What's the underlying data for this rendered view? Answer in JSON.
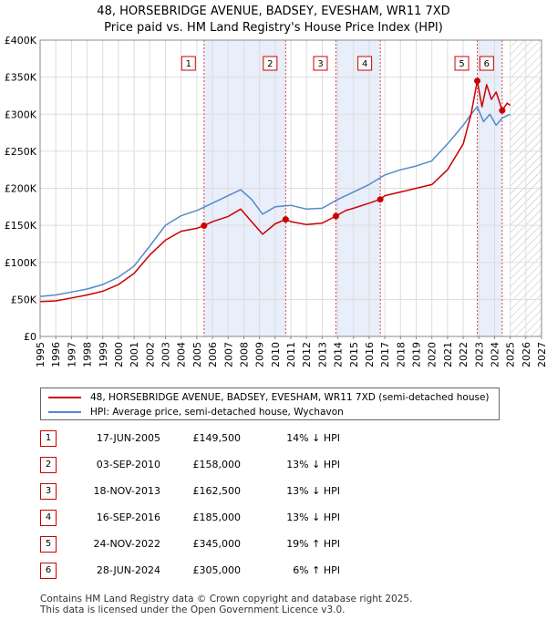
{
  "title_line1": "48, HORSEBRIDGE AVENUE, BADSEY, EVESHAM, WR11 7XD",
  "title_line2": "Price paid vs. HM Land Registry's House Price Index (HPI)",
  "colors": {
    "property": "#cc0000",
    "hpi": "#5588cc",
    "shade": "#e8eefa",
    "marker_border": "#cc0000",
    "hatch": "#bbbbbb"
  },
  "chart_data": {
    "type": "line",
    "title": "Price paid vs. HM Land Registry's House Price Index (HPI)",
    "xlabel": "",
    "ylabel": "",
    "xlim": [
      1995,
      2027
    ],
    "ylim": [
      0,
      400000
    ],
    "y_ticks": [
      0,
      50000,
      100000,
      150000,
      200000,
      250000,
      300000,
      350000,
      400000
    ],
    "y_tick_labels": [
      "£0",
      "£50K",
      "£100K",
      "£150K",
      "£200K",
      "£250K",
      "£300K",
      "£350K",
      "£400K"
    ],
    "x_ticks": [
      1995,
      1996,
      1997,
      1998,
      1999,
      2000,
      2001,
      2002,
      2003,
      2004,
      2005,
      2006,
      2007,
      2008,
      2009,
      2010,
      2011,
      2012,
      2013,
      2014,
      2015,
      2016,
      2017,
      2018,
      2019,
      2020,
      2021,
      2022,
      2023,
      2024,
      2025,
      2026,
      2027
    ],
    "x_tick_labels": [
      "1995",
      "1996",
      "1997",
      "1998",
      "1999",
      "2000",
      "2001",
      "2002",
      "2003",
      "2004",
      "2005",
      "2006",
      "2007",
      "2008",
      "2009",
      "2010",
      "2011",
      "2012",
      "2013",
      "2014",
      "2015",
      "2016",
      "2017",
      "2018",
      "2019",
      "2020",
      "2021",
      "2022",
      "2023",
      "2024",
      "2025",
      "2026",
      "2027"
    ],
    "shaded_ranges": [
      [
        2005.46,
        2010.67
      ],
      [
        2013.88,
        2016.71
      ],
      [
        2022.9,
        2024.49
      ]
    ],
    "hatched_from": 2025.0,
    "sales": [
      {
        "label": "1",
        "x": 2005.46,
        "y": 149500
      },
      {
        "label": "2",
        "x": 2010.67,
        "y": 158000
      },
      {
        "label": "3",
        "x": 2013.88,
        "y": 162500
      },
      {
        "label": "4",
        "x": 2016.71,
        "y": 185000
      },
      {
        "label": "5",
        "x": 2022.9,
        "y": 345000
      },
      {
        "label": "6",
        "x": 2024.49,
        "y": 305000
      }
    ],
    "series": [
      {
        "name": "48, HORSEBRIDGE AVENUE, BADSEY, EVESHAM, WR11 7XD (semi-detached house)",
        "color": "#cc0000",
        "x": [
          1995,
          1996,
          1997,
          1998,
          1999,
          2000,
          2001,
          2002,
          2003,
          2004,
          2005,
          2005.46,
          2006,
          2007,
          2007.8,
          2008.5,
          2009.2,
          2010,
          2010.67,
          2011,
          2012,
          2013,
          2013.88,
          2014.5,
          2015,
          2016,
          2016.71,
          2017,
          2018,
          2019,
          2020,
          2021,
          2022,
          2022.5,
          2022.9,
          2023.2,
          2023.5,
          2023.8,
          2024.1,
          2024.49,
          2024.8,
          2025.0
        ],
        "y": [
          47000,
          48000,
          52000,
          56000,
          61000,
          70000,
          85000,
          110000,
          130000,
          142000,
          146000,
          149500,
          155000,
          162000,
          172000,
          155000,
          138000,
          152000,
          158000,
          155000,
          151000,
          153000,
          162500,
          170000,
          173000,
          180000,
          185000,
          190000,
          195000,
          200000,
          205000,
          225000,
          260000,
          300000,
          345000,
          310000,
          340000,
          320000,
          330000,
          305000,
          315000,
          312000
        ]
      },
      {
        "name": "HPI: Average price, semi-detached house, Wychavon",
        "color": "#5588cc",
        "x": [
          1995,
          1996,
          1997,
          1998,
          1999,
          2000,
          2001,
          2002,
          2003,
          2004,
          2005,
          2006,
          2007,
          2007.8,
          2008.5,
          2009.2,
          2010,
          2011,
          2012,
          2013,
          2014,
          2015,
          2016,
          2017,
          2018,
          2019,
          2020,
          2021,
          2022,
          2022.5,
          2022.9,
          2023.3,
          2023.7,
          2024.1,
          2024.5,
          2025.0
        ],
        "y": [
          54000,
          56000,
          60000,
          64000,
          70000,
          80000,
          95000,
          122000,
          150000,
          163000,
          170000,
          180000,
          190000,
          198000,
          185000,
          165000,
          175000,
          177000,
          172000,
          173000,
          185000,
          195000,
          205000,
          218000,
          225000,
          230000,
          237000,
          260000,
          285000,
          300000,
          310000,
          290000,
          300000,
          285000,
          295000,
          300000
        ]
      }
    ],
    "legend_position": "below"
  },
  "legend": {
    "property_label": "48, HORSEBRIDGE AVENUE, BADSEY, EVESHAM, WR11 7XD (semi-detached house)",
    "hpi_label": "HPI: Average price, semi-detached house, Wychavon"
  },
  "transactions": [
    {
      "num": "1",
      "date": "17-JUN-2005",
      "price": "£149,500",
      "hpi": "14% ↓ HPI"
    },
    {
      "num": "2",
      "date": "03-SEP-2010",
      "price": "£158,000",
      "hpi": "13% ↓ HPI"
    },
    {
      "num": "3",
      "date": "18-NOV-2013",
      "price": "£162,500",
      "hpi": "13% ↓ HPI"
    },
    {
      "num": "4",
      "date": "16-SEP-2016",
      "price": "£185,000",
      "hpi": "13% ↓ HPI"
    },
    {
      "num": "5",
      "date": "24-NOV-2022",
      "price": "£345,000",
      "hpi": "19% ↑ HPI"
    },
    {
      "num": "6",
      "date": "28-JUN-2024",
      "price": "£305,000",
      "hpi": "6% ↑ HPI"
    }
  ],
  "footer_line1": "Contains HM Land Registry data © Crown copyright and database right 2025.",
  "footer_line2": "This data is licensed under the Open Government Licence v3.0."
}
